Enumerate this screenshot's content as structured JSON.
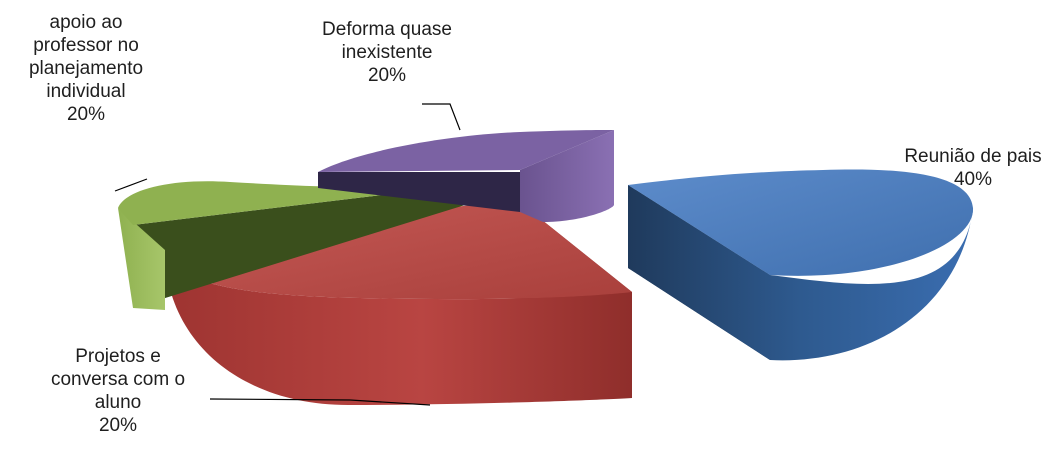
{
  "chart_data": {
    "type": "pie",
    "title": "",
    "slices": [
      {
        "name": "Reunião de pais",
        "label_lines": [
          "Reunião de pais"
        ],
        "value": 40,
        "pct_label": "40%",
        "color": "#4a78b8"
      },
      {
        "name": "Projetos e conversa com o aluno",
        "label_lines": [
          "Projetos e",
          "conversa com o",
          "aluno"
        ],
        "value": 20,
        "pct_label": "20%",
        "color": "#b84744"
      },
      {
        "name": "apoio ao professor no planejamento individual",
        "label_lines": [
          "apoio ao",
          "professor no",
          "planejamento",
          "individual"
        ],
        "value": 20,
        "pct_label": "20%",
        "color": "#8fb150"
      },
      {
        "name": "Deforma quase inexistente",
        "label_lines": [
          "Deforma quase",
          "inexistente"
        ],
        "value": 20,
        "pct_label": "20%",
        "color": "#7b62a3"
      }
    ],
    "style": "3d-exploded"
  }
}
